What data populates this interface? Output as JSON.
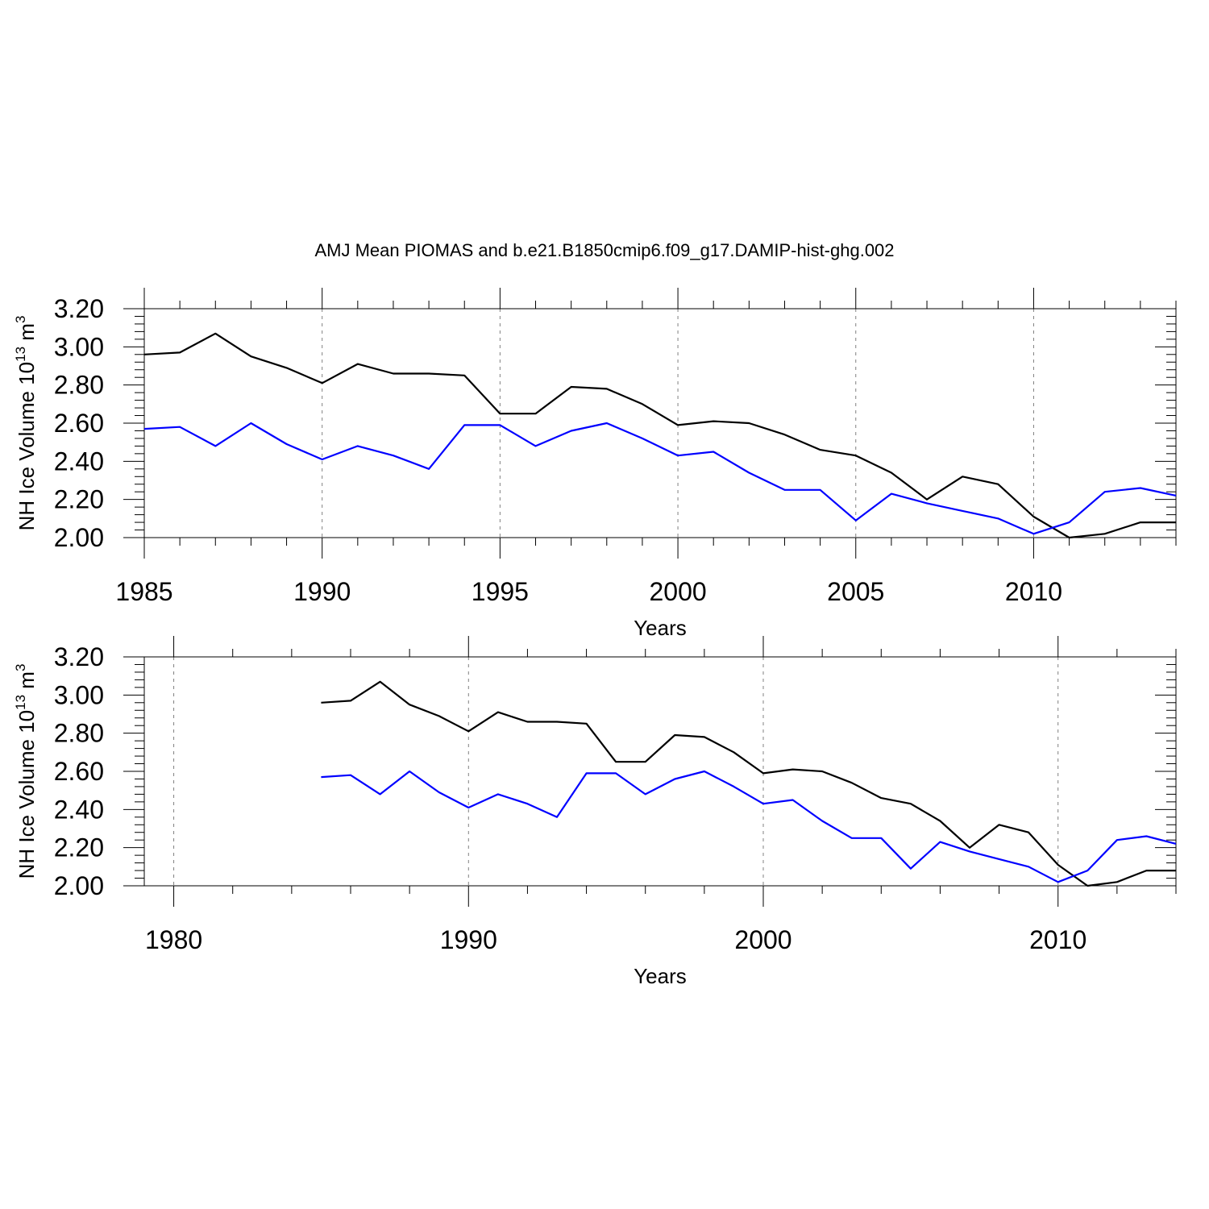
{
  "figure": {
    "title": "AMJ Mean PIOMAS and b.e21.B1850cmip6.f09_g17.DAMIP-hist-ghg.002"
  },
  "chart_data": [
    {
      "type": "line",
      "title": "AMJ Mean PIOMAS and b.e21.B1850cmip6.f09_g17.DAMIP-hist-ghg.002",
      "xlabel": "Years",
      "ylabel": "NH Ice Volume 10",
      "ylabel_superscript": "13",
      "ylabel_unit": "m",
      "ylabel_unit_superscript": "3",
      "xlim": [
        1985,
        2014
      ],
      "ylim": [
        2.0,
        3.2
      ],
      "xticks": [
        1985,
        1990,
        1995,
        2000,
        2005,
        2010
      ],
      "xtick_labels": [
        "1985",
        "1990",
        "1995",
        "2000",
        "2005",
        "2010"
      ],
      "x_minor_step": 1,
      "yticks": [
        2.0,
        2.2,
        2.4,
        2.6,
        2.8,
        3.0,
        3.2
      ],
      "ytick_labels": [
        "2.00",
        "2.20",
        "2.40",
        "2.60",
        "2.80",
        "3.00",
        "3.20"
      ],
      "y_minor_step": 0.04,
      "grid": "vertical dashed at major x ticks",
      "x": [
        1985,
        1986,
        1987,
        1988,
        1989,
        1990,
        1991,
        1992,
        1993,
        1994,
        1995,
        1996,
        1997,
        1998,
        1999,
        2000,
        2001,
        2002,
        2003,
        2004,
        2005,
        2006,
        2007,
        2008,
        2009,
        2010,
        2011,
        2012,
        2013,
        2014
      ],
      "series": [
        {
          "name": "PIOMAS",
          "color": "#000000",
          "values": [
            2.96,
            2.97,
            3.07,
            2.95,
            2.89,
            2.81,
            2.91,
            2.86,
            2.86,
            2.85,
            2.65,
            2.65,
            2.79,
            2.78,
            2.7,
            2.59,
            2.61,
            2.6,
            2.54,
            2.46,
            2.43,
            2.34,
            2.2,
            2.32,
            2.28,
            2.11,
            2.0,
            2.02,
            2.08,
            2.08
          ]
        },
        {
          "name": "b.e21.B1850cmip6.f09_g17.DAMIP-hist-ghg.002",
          "color": "#0000ff",
          "values": [
            2.57,
            2.58,
            2.48,
            2.6,
            2.49,
            2.41,
            2.48,
            2.43,
            2.36,
            2.59,
            2.59,
            2.48,
            2.56,
            2.6,
            2.52,
            2.43,
            2.45,
            2.34,
            2.25,
            2.25,
            2.09,
            2.23,
            2.18,
            2.14,
            2.1,
            2.02,
            2.08,
            2.24,
            2.26,
            2.22
          ]
        }
      ]
    },
    {
      "type": "line",
      "title": "",
      "xlabel": "Years",
      "ylabel": "NH Ice Volume 10",
      "ylabel_superscript": "13",
      "ylabel_unit": "m",
      "ylabel_unit_superscript": "3",
      "xlim": [
        1979,
        2014
      ],
      "ylim": [
        2.0,
        3.2
      ],
      "xticks": [
        1980,
        1990,
        2000,
        2010
      ],
      "xtick_labels": [
        "1980",
        "1990",
        "2000",
        "2010"
      ],
      "x_minor_step": 2,
      "yticks": [
        2.0,
        2.2,
        2.4,
        2.6,
        2.8,
        3.0,
        3.2
      ],
      "ytick_labels": [
        "2.00",
        "2.20",
        "2.40",
        "2.60",
        "2.80",
        "3.00",
        "3.20"
      ],
      "y_minor_step": 0.04,
      "grid": "vertical dashed at major x ticks",
      "x": [
        1985,
        1986,
        1987,
        1988,
        1989,
        1990,
        1991,
        1992,
        1993,
        1994,
        1995,
        1996,
        1997,
        1998,
        1999,
        2000,
        2001,
        2002,
        2003,
        2004,
        2005,
        2006,
        2007,
        2008,
        2009,
        2010,
        2011,
        2012,
        2013,
        2014
      ],
      "series": [
        {
          "name": "PIOMAS",
          "color": "#000000",
          "values": [
            2.96,
            2.97,
            3.07,
            2.95,
            2.89,
            2.81,
            2.91,
            2.86,
            2.86,
            2.85,
            2.65,
            2.65,
            2.79,
            2.78,
            2.7,
            2.59,
            2.61,
            2.6,
            2.54,
            2.46,
            2.43,
            2.34,
            2.2,
            2.32,
            2.28,
            2.11,
            2.0,
            2.02,
            2.08,
            2.08
          ]
        },
        {
          "name": "b.e21.B1850cmip6.f09_g17.DAMIP-hist-ghg.002",
          "color": "#0000ff",
          "values": [
            2.57,
            2.58,
            2.48,
            2.6,
            2.49,
            2.41,
            2.48,
            2.43,
            2.36,
            2.59,
            2.59,
            2.48,
            2.56,
            2.6,
            2.52,
            2.43,
            2.45,
            2.34,
            2.25,
            2.25,
            2.09,
            2.23,
            2.18,
            2.14,
            2.1,
            2.02,
            2.08,
            2.24,
            2.26,
            2.22
          ]
        }
      ]
    }
  ]
}
